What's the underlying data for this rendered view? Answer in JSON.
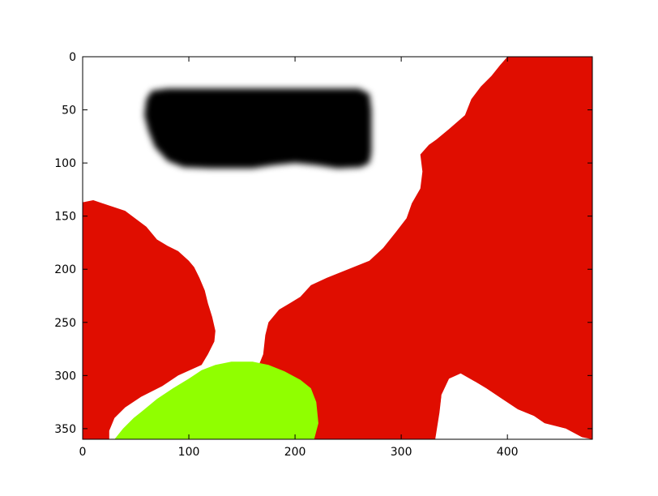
{
  "chart_data": {
    "type": "heatmap",
    "title": "",
    "xlabel": "",
    "ylabel": "",
    "xlim": [
      0,
      480
    ],
    "ylim": [
      360,
      0
    ],
    "y_axis_inverted": true,
    "x_ticks": [
      0,
      100,
      200,
      300,
      400
    ],
    "y_ticks": [
      0,
      50,
      100,
      150,
      200,
      250,
      300,
      350
    ],
    "grid": false,
    "legend": "none",
    "colors": {
      "background": "#ffffff",
      "red_region": "#e00d00",
      "green_region": "#90ff00",
      "black_region": "#000000"
    },
    "regions": [
      {
        "label": "red-left",
        "color": "#e00d00",
        "polygon": [
          [
            0,
            137
          ],
          [
            10,
            135
          ],
          [
            25,
            140
          ],
          [
            40,
            145
          ],
          [
            60,
            160
          ],
          [
            70,
            172
          ],
          [
            80,
            178
          ],
          [
            90,
            183
          ],
          [
            100,
            192
          ],
          [
            105,
            198
          ],
          [
            110,
            208
          ],
          [
            115,
            220
          ],
          [
            118,
            232
          ],
          [
            122,
            245
          ],
          [
            125,
            258
          ],
          [
            124,
            268
          ],
          [
            118,
            280
          ],
          [
            112,
            290
          ],
          [
            90,
            300
          ],
          [
            75,
            310
          ],
          [
            55,
            320
          ],
          [
            40,
            330
          ],
          [
            30,
            340
          ],
          [
            25,
            352
          ],
          [
            25,
            360
          ],
          [
            0,
            360
          ]
        ]
      },
      {
        "label": "red-right",
        "color": "#e00d00",
        "polygon": [
          [
            400,
            0
          ],
          [
            480,
            0
          ],
          [
            480,
            360
          ],
          [
            470,
            358
          ],
          [
            455,
            350
          ],
          [
            435,
            345
          ],
          [
            425,
            338
          ],
          [
            410,
            332
          ],
          [
            395,
            322
          ],
          [
            380,
            312
          ],
          [
            370,
            306
          ],
          [
            356,
            300
          ],
          [
            346,
            304
          ],
          [
            338,
            318
          ],
          [
            336,
            335
          ],
          [
            332,
            360
          ],
          [
            215,
            360
          ],
          [
            217,
            335
          ],
          [
            215,
            320
          ],
          [
            205,
            312
          ],
          [
            192,
            305
          ],
          [
            180,
            300
          ],
          [
            170,
            296
          ],
          [
            166,
            290
          ],
          [
            170,
            280
          ],
          [
            172,
            262
          ],
          [
            175,
            250
          ],
          [
            185,
            238
          ],
          [
            195,
            232
          ],
          [
            205,
            226
          ],
          [
            215,
            215
          ],
          [
            230,
            208
          ],
          [
            250,
            200
          ],
          [
            270,
            192
          ],
          [
            283,
            180
          ],
          [
            295,
            165
          ],
          [
            305,
            152
          ],
          [
            310,
            138
          ],
          [
            318,
            124
          ],
          [
            320,
            108
          ],
          [
            318,
            92
          ],
          [
            326,
            83
          ],
          [
            333,
            78
          ],
          [
            345,
            68
          ],
          [
            360,
            55
          ],
          [
            366,
            40
          ],
          [
            375,
            28
          ],
          [
            385,
            18
          ],
          [
            393,
            8
          ]
        ]
      },
      {
        "label": "white-hole",
        "color": "#ffffff",
        "polygon": [
          [
            338,
            318
          ],
          [
            345,
            303
          ],
          [
            356,
            298
          ],
          [
            370,
            306
          ],
          [
            380,
            312
          ],
          [
            395,
            322
          ],
          [
            410,
            332
          ],
          [
            425,
            338
          ],
          [
            435,
            345
          ],
          [
            455,
            350
          ],
          [
            470,
            358
          ],
          [
            470,
            360
          ],
          [
            334,
            360
          ]
        ]
      },
      {
        "label": "green-bottom",
        "color": "#90ff00",
        "polygon": [
          [
            30,
            360
          ],
          [
            38,
            350
          ],
          [
            48,
            340
          ],
          [
            58,
            332
          ],
          [
            70,
            322
          ],
          [
            85,
            312
          ],
          [
            100,
            303
          ],
          [
            112,
            295
          ],
          [
            125,
            290
          ],
          [
            140,
            287
          ],
          [
            160,
            287
          ],
          [
            175,
            290
          ],
          [
            190,
            296
          ],
          [
            205,
            304
          ],
          [
            215,
            312
          ],
          [
            220,
            325
          ],
          [
            222,
            345
          ],
          [
            218,
            360
          ]
        ]
      },
      {
        "label": "black-blob",
        "color": "#000000",
        "polygon": [
          [
            60,
            40
          ],
          [
            65,
            32
          ],
          [
            80,
            30
          ],
          [
            260,
            30
          ],
          [
            270,
            35
          ],
          [
            272,
            50
          ],
          [
            272,
            90
          ],
          [
            270,
            100
          ],
          [
            262,
            104
          ],
          [
            240,
            105
          ],
          [
            220,
            102
          ],
          [
            200,
            100
          ],
          [
            180,
            102
          ],
          [
            160,
            105
          ],
          [
            120,
            105
          ],
          [
            95,
            104
          ],
          [
            80,
            98
          ],
          [
            68,
            85
          ],
          [
            62,
            70
          ],
          [
            58,
            55
          ]
        ]
      }
    ]
  }
}
